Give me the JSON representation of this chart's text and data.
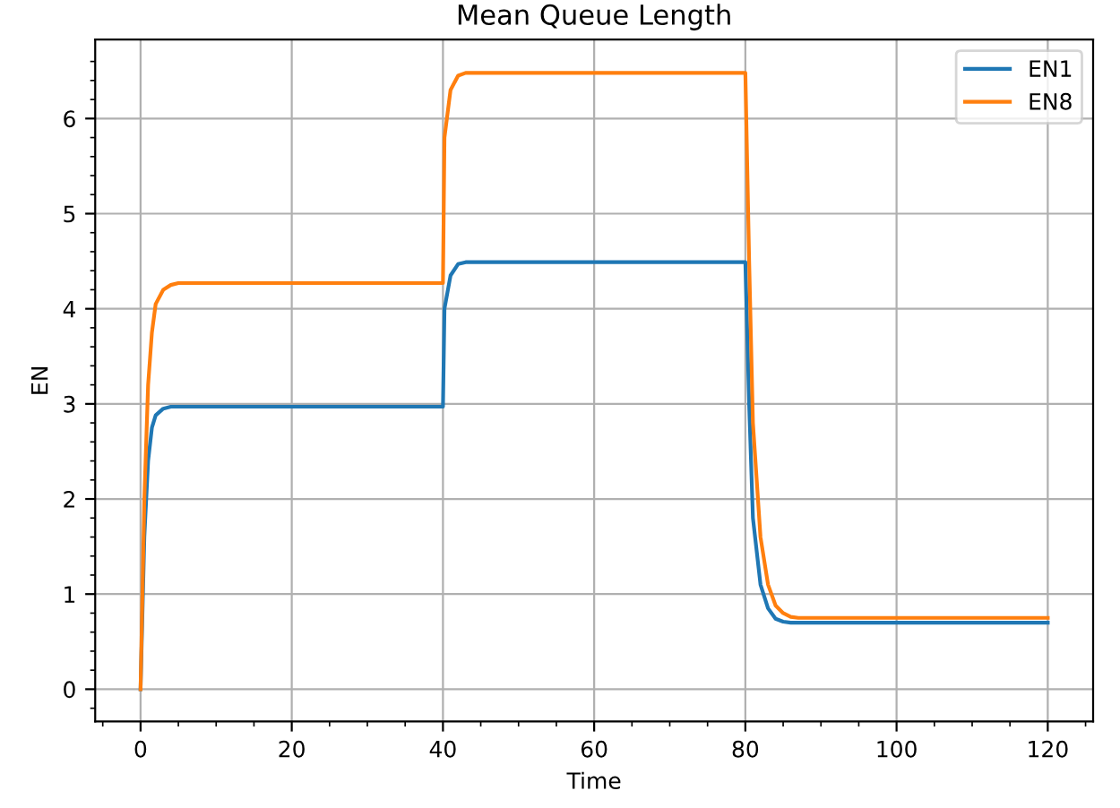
{
  "chart_data": {
    "type": "line",
    "title": "Mean Queue Length",
    "xlabel": "Time",
    "ylabel": "EN",
    "xlim": [
      -6,
      126
    ],
    "ylim": [
      -0.34,
      6.83
    ],
    "xticks": [
      0,
      20,
      40,
      60,
      80,
      100,
      120,
      {
        "value": -5,
        "label": null
      },
      {
        "value": 5,
        "label": null
      },
      {
        "value": 10,
        "label": null
      },
      {
        "value": 15,
        "label": null
      },
      {
        "value": 25,
        "label": null
      },
      {
        "value": 30,
        "label": null
      },
      {
        "value": 35,
        "label": null
      },
      {
        "value": 45,
        "label": null
      },
      {
        "value": 50,
        "label": null
      },
      {
        "value": 55,
        "label": null
      },
      {
        "value": 65,
        "label": null
      },
      {
        "value": 70,
        "label": null
      },
      {
        "value": 75,
        "label": null
      },
      {
        "value": 85,
        "label": null
      },
      {
        "value": 90,
        "label": null
      },
      {
        "value": 95,
        "label": null
      },
      {
        "value": 105,
        "label": null
      },
      {
        "value": 110,
        "label": null
      },
      {
        "value": 115,
        "label": null
      },
      {
        "value": 125,
        "label": null
      }
    ],
    "yticks": [
      0,
      1,
      2,
      3,
      4,
      5,
      6,
      {
        "value": -0.2,
        "label": null
      },
      {
        "value": 0.2,
        "label": null
      },
      {
        "value": 0.4,
        "label": null
      },
      {
        "value": 0.6,
        "label": null
      },
      {
        "value": 0.8,
        "label": null
      },
      {
        "value": 1.2,
        "label": null
      },
      {
        "value": 1.4,
        "label": null
      },
      {
        "value": 1.6,
        "label": null
      },
      {
        "value": 1.8,
        "label": null
      },
      {
        "value": 2.2,
        "label": null
      },
      {
        "value": 2.4,
        "label": null
      },
      {
        "value": 2.6,
        "label": null
      },
      {
        "value": 2.8,
        "label": null
      },
      {
        "value": 3.2,
        "label": null
      },
      {
        "value": 3.4,
        "label": null
      },
      {
        "value": 3.6,
        "label": null
      },
      {
        "value": 3.8,
        "label": null
      },
      {
        "value": 4.2,
        "label": null
      },
      {
        "value": 4.4,
        "label": null
      },
      {
        "value": 4.6,
        "label": null
      },
      {
        "value": 4.8,
        "label": null
      },
      {
        "value": 5.2,
        "label": null
      },
      {
        "value": 5.4,
        "label": null
      },
      {
        "value": 5.6,
        "label": null
      },
      {
        "value": 5.8,
        "label": null
      },
      {
        "value": 6.2,
        "label": null
      },
      {
        "value": 6.4,
        "label": null
      },
      {
        "value": 6.6,
        "label": null
      }
    ],
    "grid": true,
    "legend": "top right",
    "marker": "none",
    "line_style": "solid",
    "series": [
      {
        "name": "EN1",
        "color": "#1f77b4",
        "x": [
          0,
          0.5,
          1,
          1.5,
          2,
          3,
          4,
          40,
          40.2,
          41,
          42,
          43,
          80,
          80.5,
          81,
          82,
          83,
          84,
          85,
          86,
          120
        ],
        "values": [
          0,
          1.6,
          2.4,
          2.75,
          2.88,
          2.95,
          2.97,
          2.97,
          4.0,
          4.35,
          4.47,
          4.49,
          4.49,
          3.0,
          1.8,
          1.1,
          0.85,
          0.74,
          0.71,
          0.7,
          0.7
        ]
      },
      {
        "name": "EN8",
        "color": "#ff7f0e",
        "x": [
          0,
          0.5,
          1,
          1.5,
          2,
          3,
          4,
          5,
          40,
          40.2,
          41,
          42,
          43,
          80,
          80.5,
          81,
          82,
          83,
          84,
          85,
          86,
          87,
          120
        ],
        "values": [
          0,
          2.0,
          3.2,
          3.75,
          4.05,
          4.2,
          4.25,
          4.27,
          4.27,
          5.8,
          6.3,
          6.45,
          6.48,
          6.48,
          4.5,
          2.8,
          1.6,
          1.1,
          0.88,
          0.8,
          0.76,
          0.75,
          0.75
        ]
      }
    ]
  }
}
